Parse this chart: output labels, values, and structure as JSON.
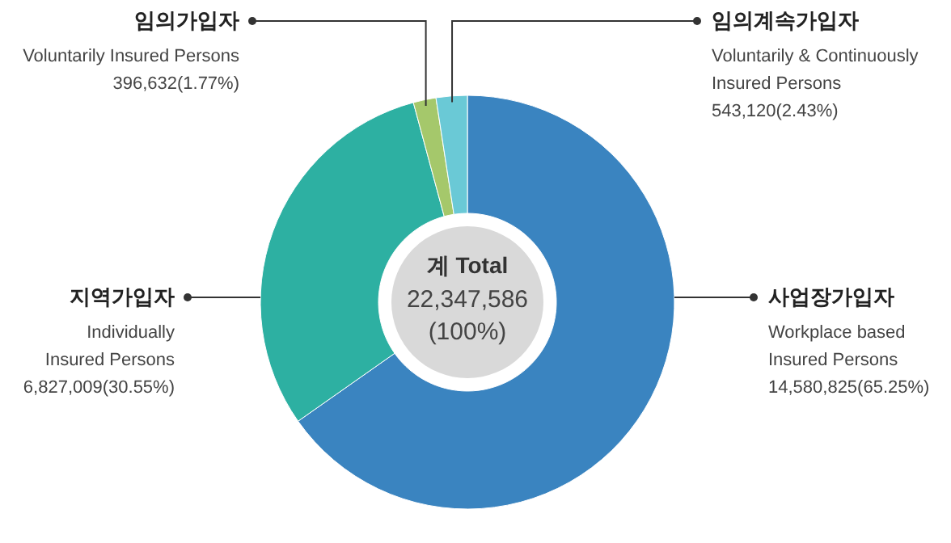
{
  "chart_data": {
    "type": "donut",
    "title": "계 Total",
    "annotations": [
      "22,347,586",
      "(100%)"
    ],
    "categories": [
      "사업장가입자\nWorkplace based\nInsured Persons",
      "지역가입자\nIndividually\nInsured Persons",
      "임의가입자\nVoluntarily Insured Persons",
      "임의계속가입자\nVoluntarily & Continuously\nInsured Persons"
    ],
    "values": [
      14580825,
      6827009,
      396632,
      543120
    ],
    "value_labels": [
      "14,580,825(65.25%)",
      "6,827,009(30.55%)",
      "396,632(1.77%)",
      "543,120(2.43%)"
    ],
    "colors": [
      "#3a84c0",
      "#2db0a2",
      "#a5c86b",
      "#6ac9d6"
    ]
  }
}
